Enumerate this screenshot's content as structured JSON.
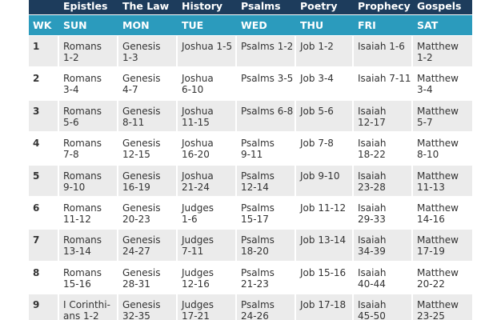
{
  "header": {
    "groups": [
      "Epistles",
      "The Law",
      "History",
      "Psalms",
      "Poetry",
      "Prophecy",
      "Gospels"
    ],
    "days": [
      "WK",
      "SUN",
      "MON",
      "TUE",
      "WED",
      "THU",
      "FRI",
      "SAT"
    ]
  },
  "rows": [
    {
      "week": "1",
      "cells": [
        [
          "Romans",
          "1-2"
        ],
        [
          "Genesis",
          "1-3"
        ],
        [
          "Joshua 1-5"
        ],
        [
          "Psalms 1-2"
        ],
        [
          "Job 1-2"
        ],
        [
          "Isaiah 1-6"
        ],
        [
          "Matthew",
          "1-2"
        ]
      ]
    },
    {
      "week": "2",
      "cells": [
        [
          "Romans",
          "3-4"
        ],
        [
          "Genesis",
          "4-7"
        ],
        [
          "Joshua",
          "6-10"
        ],
        [
          "Psalms 3-5"
        ],
        [
          "Job 3-4"
        ],
        [
          "Isaiah 7-11"
        ],
        [
          "Matthew",
          "3-4"
        ]
      ]
    },
    {
      "week": "3",
      "cells": [
        [
          "Romans",
          "5-6"
        ],
        [
          "Genesis",
          "8-11"
        ],
        [
          "Joshua",
          "11-15"
        ],
        [
          "Psalms 6-8"
        ],
        [
          "Job 5-6"
        ],
        [
          "Isaiah",
          "12-17"
        ],
        [
          "Matthew",
          "5-7"
        ]
      ]
    },
    {
      "week": "4",
      "cells": [
        [
          "Romans",
          "7-8"
        ],
        [
          "Genesis",
          "12-15"
        ],
        [
          "Joshua",
          "16-20"
        ],
        [
          "Psalms",
          "9-11"
        ],
        [
          "Job 7-8"
        ],
        [
          "Isaiah",
          "18-22"
        ],
        [
          "Matthew",
          "8-10"
        ]
      ]
    },
    {
      "week": "5",
      "cells": [
        [
          "Romans",
          "9-10"
        ],
        [
          "Genesis",
          "16-19"
        ],
        [
          "Joshua",
          "21-24"
        ],
        [
          "Psalms",
          "12-14"
        ],
        [
          "Job 9-10"
        ],
        [
          "Isaiah",
          "23-28"
        ],
        [
          "Matthew",
          "11-13"
        ]
      ]
    },
    {
      "week": "6",
      "cells": [
        [
          "Romans",
          "11-12"
        ],
        [
          "Genesis",
          "20-23"
        ],
        [
          "Judges",
          "1-6"
        ],
        [
          "Psalms",
          "15-17"
        ],
        [
          "Job 11-12"
        ],
        [
          "Isaiah",
          "29-33"
        ],
        [
          "Matthew",
          "14-16"
        ]
      ]
    },
    {
      "week": "7",
      "cells": [
        [
          "Romans",
          "13-14"
        ],
        [
          "Genesis",
          "24-27"
        ],
        [
          "Judges",
          "7-11"
        ],
        [
          "Psalms",
          "18-20"
        ],
        [
          "Job 13-14"
        ],
        [
          "Isaiah",
          "34-39"
        ],
        [
          "Matthew",
          "17-19"
        ]
      ]
    },
    {
      "week": "8",
      "cells": [
        [
          "Romans",
          "15-16"
        ],
        [
          "Genesis",
          "28-31"
        ],
        [
          "Judges",
          "12-16"
        ],
        [
          "Psalms",
          "21-23"
        ],
        [
          "Job 15-16"
        ],
        [
          "Isaiah",
          "40-44"
        ],
        [
          "Matthew",
          "20-22"
        ]
      ]
    },
    {
      "week": "9",
      "cells": [
        [
          "I Corinthi-",
          "ans 1-2"
        ],
        [
          "Genesis",
          "32-35"
        ],
        [
          "Judges",
          "17-21"
        ],
        [
          "Psalms",
          "24-26"
        ],
        [
          "Job 17-18"
        ],
        [
          "Isaiah",
          "45-50"
        ],
        [
          "Matthew",
          "23-25"
        ]
      ]
    }
  ]
}
